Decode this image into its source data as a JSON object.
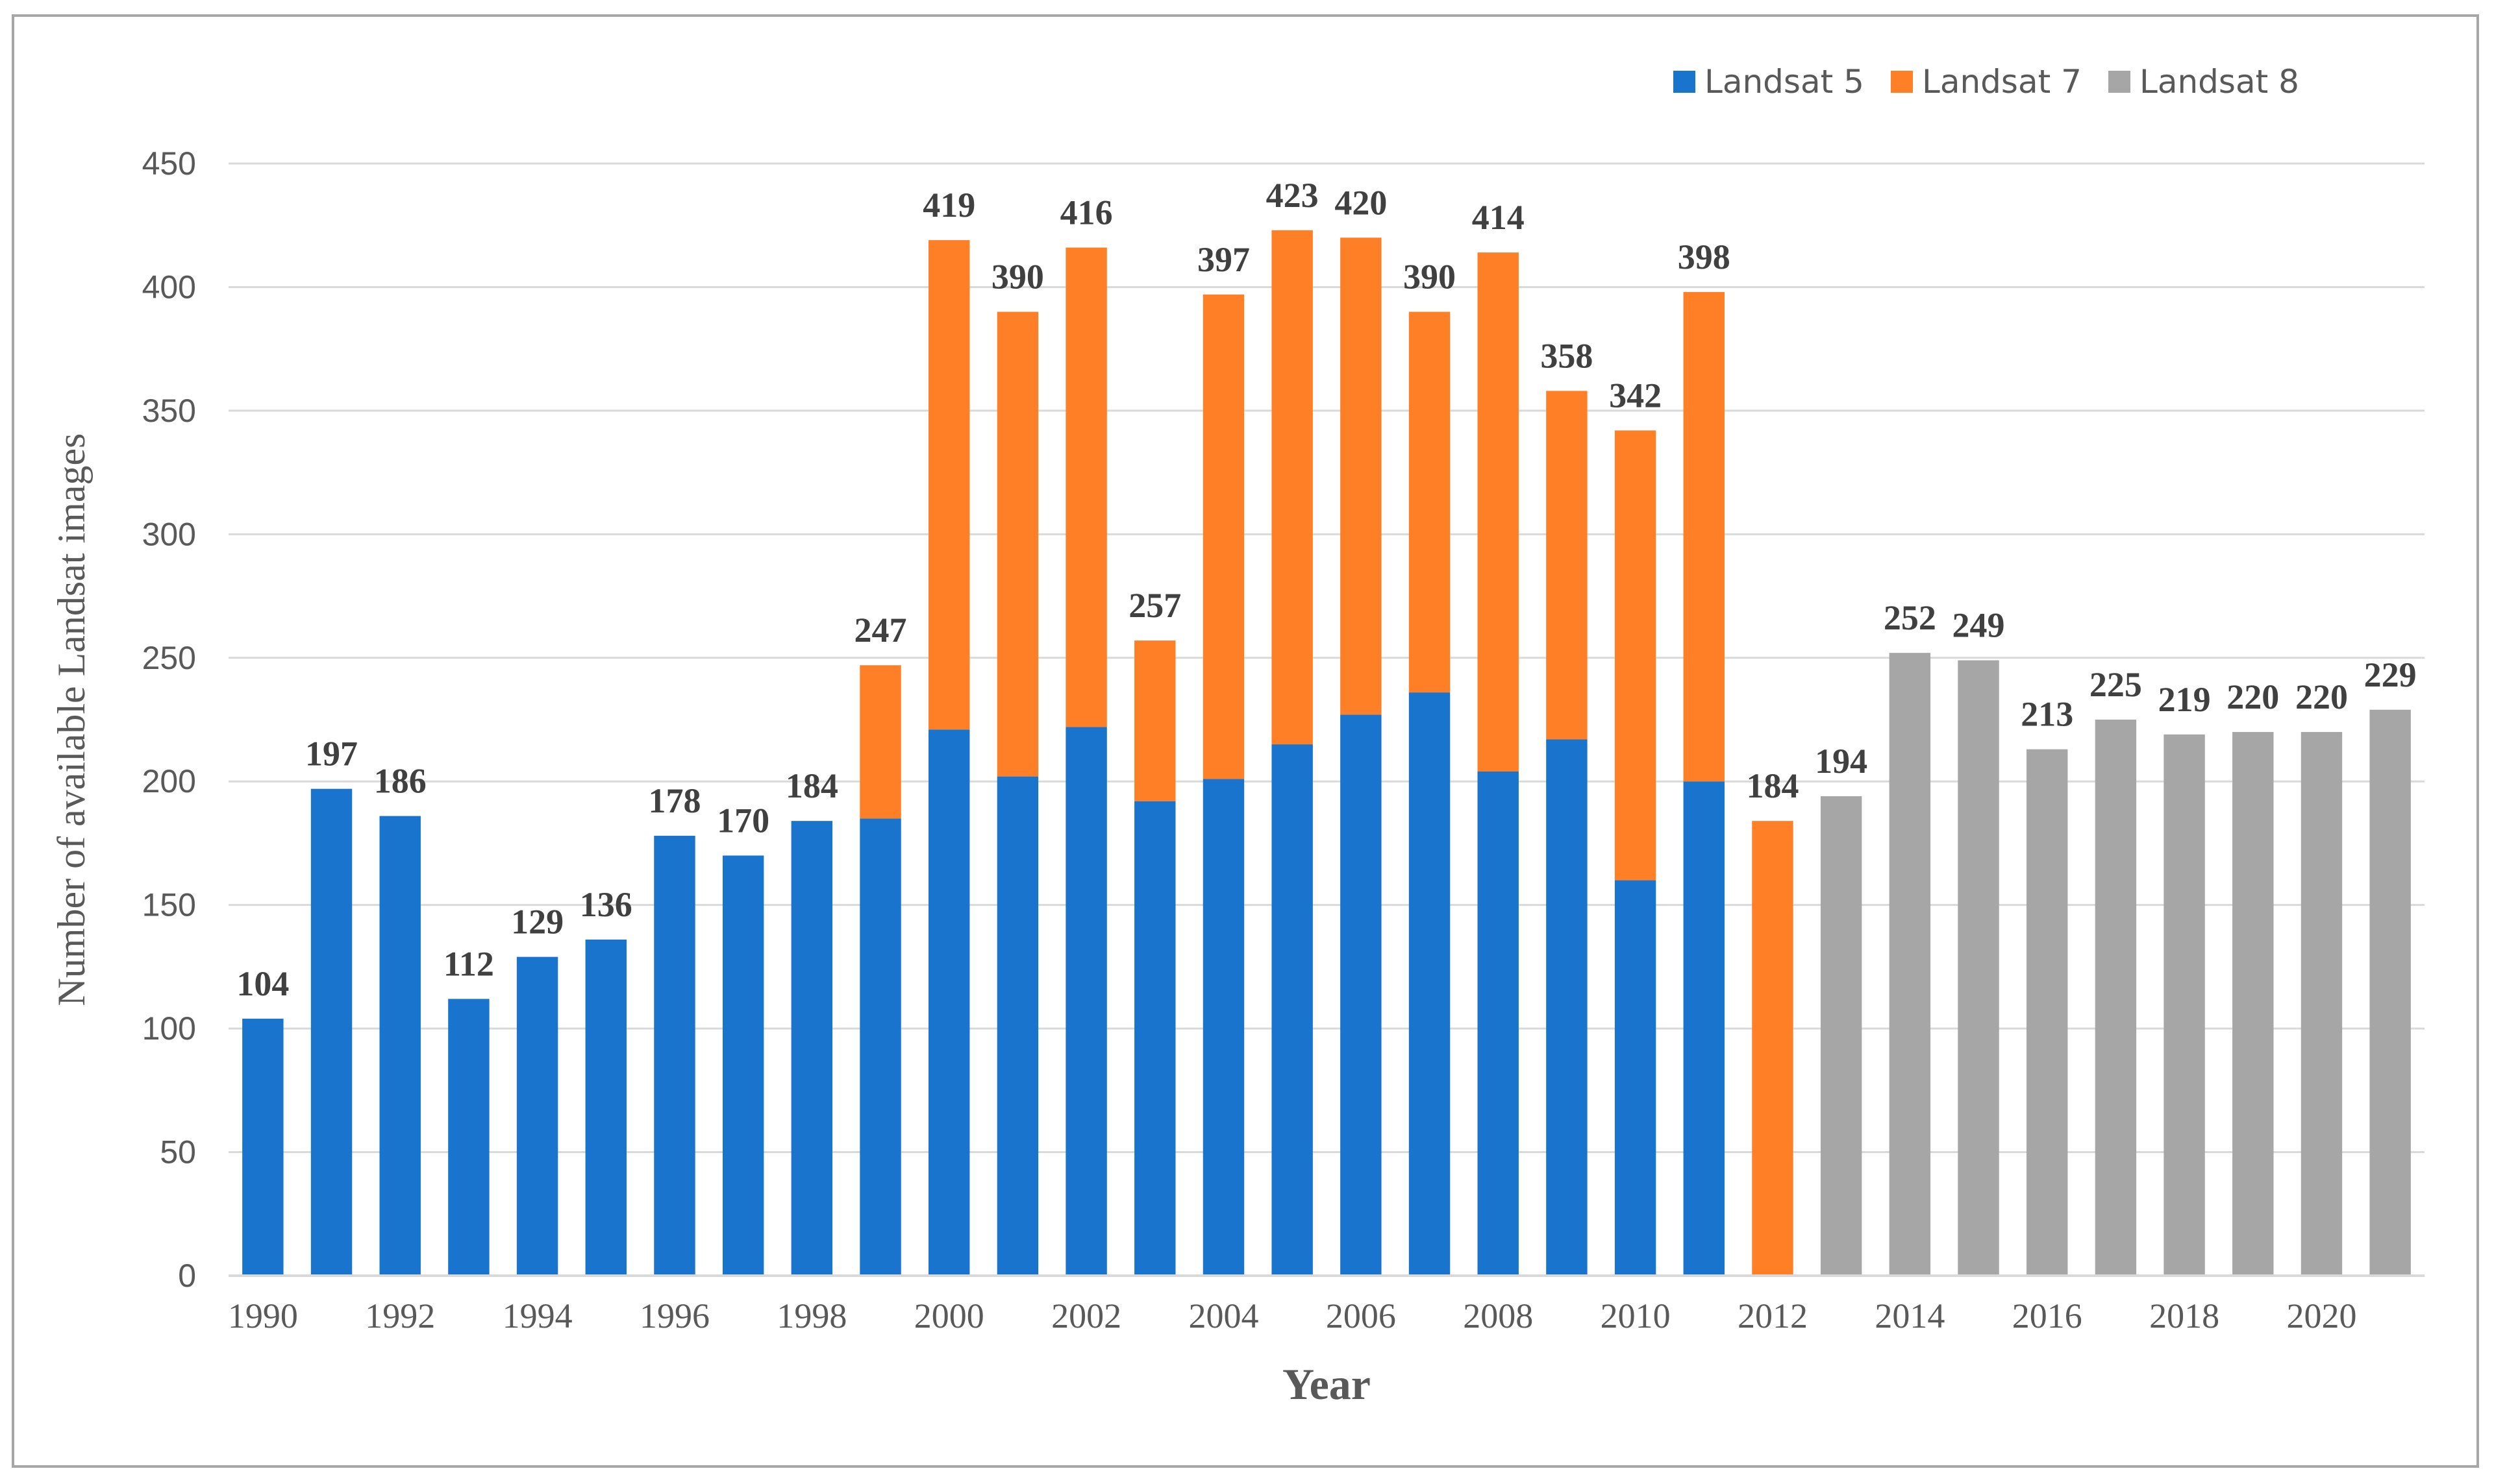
{
  "chart_data": {
    "type": "bar",
    "stacked": true,
    "title": "",
    "xlabel": "Year",
    "ylabel": "Number of available Landsat images",
    "ylim": [
      0,
      450
    ],
    "yticks": [
      0,
      50,
      100,
      150,
      200,
      250,
      300,
      350,
      400,
      450
    ],
    "grid": true,
    "legend_position": "top-right",
    "categories": [
      "1990",
      "1991",
      "1992",
      "1993",
      "1994",
      "1995",
      "1996",
      "1997",
      "1998",
      "1999",
      "2000",
      "2001",
      "2002",
      "2003",
      "2004",
      "2005",
      "2006",
      "2007",
      "2008",
      "2009",
      "2010",
      "2011",
      "2012",
      "2013",
      "2014",
      "2015",
      "2016",
      "2017",
      "2018",
      "2019",
      "2020",
      "2021"
    ],
    "x_tick_labels": [
      "1990",
      "1992",
      "1994",
      "1996",
      "1998",
      "2000",
      "2002",
      "2004",
      "2006",
      "2008",
      "2010",
      "2012",
      "2014",
      "2016",
      "2018",
      "2020"
    ],
    "series": [
      {
        "name": "Landsat 5",
        "color": "#1874cd",
        "values": [
          104,
          197,
          186,
          112,
          129,
          136,
          178,
          170,
          184,
          185,
          221,
          202,
          222,
          192,
          201,
          215,
          227,
          236,
          204,
          217,
          160,
          200,
          0,
          0,
          0,
          0,
          0,
          0,
          0,
          0,
          0,
          0
        ]
      },
      {
        "name": "Landsat 7",
        "color": "#ff7f27",
        "values": [
          0,
          0,
          0,
          0,
          0,
          0,
          0,
          0,
          0,
          62,
          198,
          188,
          194,
          65,
          196,
          208,
          193,
          154,
          210,
          141,
          182,
          198,
          184,
          0,
          0,
          0,
          0,
          0,
          0,
          0,
          0,
          0
        ]
      },
      {
        "name": "Landsat 8",
        "color": "#a6a6a6",
        "values": [
          0,
          0,
          0,
          0,
          0,
          0,
          0,
          0,
          0,
          0,
          0,
          0,
          0,
          0,
          0,
          0,
          0,
          0,
          0,
          0,
          0,
          0,
          0,
          194,
          252,
          249,
          213,
          225,
          219,
          220,
          220,
          229
        ]
      }
    ],
    "totals": [
      104,
      197,
      186,
      112,
      129,
      136,
      178,
      170,
      184,
      247,
      419,
      390,
      416,
      257,
      397,
      423,
      420,
      390,
      414,
      358,
      342,
      398,
      184,
      194,
      252,
      249,
      213,
      225,
      219,
      220,
      220,
      229
    ]
  }
}
